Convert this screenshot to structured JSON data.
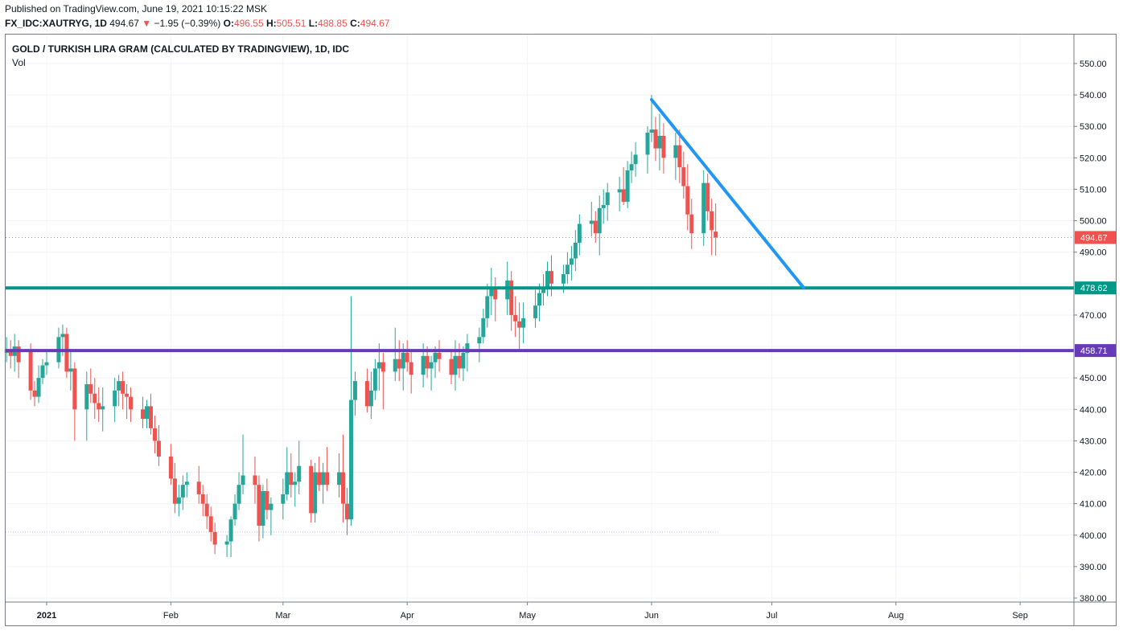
{
  "header": {
    "published": "Published on TradingView.com, June 19, 2021 10:15:22 MSK",
    "symbol": "FX_IDC:XAUTRYG, 1D",
    "last": "494.67",
    "arrow": "▼",
    "change": "−1.95 (−0.39%)",
    "o_label": "O:",
    "o": "496.55",
    "h_label": "H:",
    "h": "505.51",
    "l_label": "L:",
    "l": "488.85",
    "c_label": "C:",
    "c": "494.67"
  },
  "colors": {
    "up": "#26a69a",
    "down": "#ef5350",
    "trend": "#2196f3",
    "level1": "#009688",
    "level2": "#673ab7"
  },
  "chart_data": {
    "type": "candlestick",
    "title": "GOLD / TURKISH LIRA GRAM (CALCULATED BY TRADINGVIEW), 1D, IDC",
    "indicator": "Vol",
    "y_range": [
      376,
      556
    ],
    "y_ticks": [
      "550.00",
      "540.00",
      "530.00",
      "520.00",
      "510.00",
      "500.00",
      "490.00",
      "470.00",
      "450.00",
      "440.00",
      "430.00",
      "420.00",
      "410.00",
      "400.00",
      "390.00",
      "380.00"
    ],
    "x_labels": [
      {
        "date": "2021-01-01",
        "label": "2021",
        "bold": true
      },
      {
        "date": "2021-02-01",
        "label": "Feb"
      },
      {
        "date": "2021-03-01",
        "label": "Mar"
      },
      {
        "date": "2021-04-01",
        "label": "Apr"
      },
      {
        "date": "2021-05-01",
        "label": "May"
      },
      {
        "date": "2021-06-01",
        "label": "Jun"
      },
      {
        "date": "2021-07-01",
        "label": "Jul"
      },
      {
        "date": "2021-08-01",
        "label": "Aug"
      },
      {
        "date": "2021-09-01",
        "label": "Sep"
      }
    ],
    "levels": [
      {
        "name": "level-478",
        "value": 478.62,
        "label": "478.62",
        "color": "#009688"
      },
      {
        "name": "level-458",
        "value": 458.71,
        "label": "458.71",
        "color": "#673ab7"
      }
    ],
    "last_price": {
      "value": 494.67,
      "label": "494.67",
      "color": "#ef5350"
    },
    "trendline": {
      "from": {
        "date": "2021-06-01",
        "value": 538.5
      },
      "to": {
        "date": "2021-07-09",
        "value": 478.62
      },
      "color": "#2196f3"
    },
    "dotted_level": {
      "value": 401,
      "from": "2020-12-21",
      "to": "2021-06-18"
    },
    "candles": [
      {
        "d": "2020-12-22",
        "o": 458,
        "h": 463,
        "l": 455,
        "c": 459
      },
      {
        "d": "2020-12-23",
        "o": 459,
        "h": 462,
        "l": 453,
        "c": 457
      },
      {
        "d": "2020-12-24",
        "o": 457,
        "h": 464,
        "l": 452,
        "c": 460
      },
      {
        "d": "2020-12-25",
        "o": 460,
        "h": 462,
        "l": 450,
        "c": 455
      },
      {
        "d": "2020-12-28",
        "o": 459,
        "h": 461,
        "l": 443,
        "c": 446
      },
      {
        "d": "2020-12-29",
        "o": 446,
        "h": 449,
        "l": 441,
        "c": 444
      },
      {
        "d": "2020-12-30",
        "o": 444,
        "h": 454,
        "l": 442,
        "c": 450
      },
      {
        "d": "2020-12-31",
        "o": 450,
        "h": 456,
        "l": 448,
        "c": 454
      },
      {
        "d": "2021-01-01",
        "o": 454,
        "h": 459,
        "l": 451,
        "c": 455
      },
      {
        "d": "2021-01-04",
        "o": 455,
        "h": 466,
        "l": 453,
        "c": 463
      },
      {
        "d": "2021-01-05",
        "o": 463,
        "h": 467,
        "l": 457,
        "c": 464
      },
      {
        "d": "2021-01-06",
        "o": 464,
        "h": 466,
        "l": 450,
        "c": 452
      },
      {
        "d": "2021-01-07",
        "o": 452,
        "h": 459,
        "l": 446,
        "c": 453
      },
      {
        "d": "2021-01-08",
        "o": 453,
        "h": 455,
        "l": 430,
        "c": 440
      },
      {
        "d": "2021-01-11",
        "o": 440,
        "h": 452,
        "l": 430,
        "c": 448
      },
      {
        "d": "2021-01-12",
        "o": 448,
        "h": 453,
        "l": 442,
        "c": 445
      },
      {
        "d": "2021-01-13",
        "o": 445,
        "h": 450,
        "l": 437,
        "c": 442
      },
      {
        "d": "2021-01-14",
        "o": 442,
        "h": 447,
        "l": 436,
        "c": 440
      },
      {
        "d": "2021-01-15",
        "o": 440,
        "h": 447,
        "l": 433,
        "c": 441
      },
      {
        "d": "2021-01-18",
        "o": 441,
        "h": 450,
        "l": 436,
        "c": 446
      },
      {
        "d": "2021-01-19",
        "o": 446,
        "h": 451,
        "l": 441,
        "c": 449
      },
      {
        "d": "2021-01-20",
        "o": 449,
        "h": 452,
        "l": 440,
        "c": 445
      },
      {
        "d": "2021-01-21",
        "o": 445,
        "h": 448,
        "l": 437,
        "c": 444
      },
      {
        "d": "2021-01-22",
        "o": 444,
        "h": 447,
        "l": 436,
        "c": 440
      },
      {
        "d": "2021-01-25",
        "o": 440,
        "h": 444,
        "l": 434,
        "c": 437
      },
      {
        "d": "2021-01-26",
        "o": 437,
        "h": 443,
        "l": 434,
        "c": 441
      },
      {
        "d": "2021-01-27",
        "o": 441,
        "h": 445,
        "l": 432,
        "c": 434
      },
      {
        "d": "2021-01-28",
        "o": 434,
        "h": 438,
        "l": 426,
        "c": 430
      },
      {
        "d": "2021-01-29",
        "o": 430,
        "h": 435,
        "l": 422,
        "c": 425
      },
      {
        "d": "2021-02-01",
        "o": 425,
        "h": 429,
        "l": 416,
        "c": 418
      },
      {
        "d": "2021-02-02",
        "o": 418,
        "h": 423,
        "l": 407,
        "c": 410
      },
      {
        "d": "2021-02-03",
        "o": 410,
        "h": 416,
        "l": 406,
        "c": 412
      },
      {
        "d": "2021-02-04",
        "o": 412,
        "h": 419,
        "l": 408,
        "c": 416
      },
      {
        "d": "2021-02-05",
        "o": 416,
        "h": 420,
        "l": 412,
        "c": 417
      },
      {
        "d": "2021-02-08",
        "o": 417,
        "h": 422,
        "l": 410,
        "c": 413
      },
      {
        "d": "2021-02-09",
        "o": 413,
        "h": 416,
        "l": 406,
        "c": 410
      },
      {
        "d": "2021-02-10",
        "o": 410,
        "h": 413,
        "l": 402,
        "c": 406
      },
      {
        "d": "2021-02-11",
        "o": 406,
        "h": 409,
        "l": 398,
        "c": 401
      },
      {
        "d": "2021-02-12",
        "o": 401,
        "h": 404,
        "l": 394,
        "c": 397
      },
      {
        "d": "2021-02-15",
        "o": 397,
        "h": 400,
        "l": 393,
        "c": 398
      },
      {
        "d": "2021-02-16",
        "o": 398,
        "h": 406,
        "l": 393,
        "c": 405
      },
      {
        "d": "2021-02-17",
        "o": 405,
        "h": 413,
        "l": 403,
        "c": 410
      },
      {
        "d": "2021-02-18",
        "o": 410,
        "h": 420,
        "l": 408,
        "c": 416
      },
      {
        "d": "2021-02-19",
        "o": 416,
        "h": 432,
        "l": 413,
        "c": 419
      },
      {
        "d": "2021-02-22",
        "o": 419,
        "h": 425,
        "l": 410,
        "c": 416
      },
      {
        "d": "2021-02-23",
        "o": 416,
        "h": 419,
        "l": 398,
        "c": 403
      },
      {
        "d": "2021-02-24",
        "o": 403,
        "h": 416,
        "l": 399,
        "c": 414
      },
      {
        "d": "2021-02-25",
        "o": 414,
        "h": 418,
        "l": 405,
        "c": 408
      },
      {
        "d": "2021-02-26",
        "o": 408,
        "h": 412,
        "l": 400,
        "c": 410
      },
      {
        "d": "2021-03-01",
        "o": 410,
        "h": 418,
        "l": 405,
        "c": 413
      },
      {
        "d": "2021-03-02",
        "o": 413,
        "h": 428,
        "l": 411,
        "c": 420
      },
      {
        "d": "2021-03-03",
        "o": 420,
        "h": 426,
        "l": 412,
        "c": 416
      },
      {
        "d": "2021-03-04",
        "o": 416,
        "h": 420,
        "l": 409,
        "c": 417
      },
      {
        "d": "2021-03-05",
        "o": 417,
        "h": 430,
        "l": 413,
        "c": 422
      },
      {
        "d": "2021-03-08",
        "o": 422,
        "h": 424,
        "l": 404,
        "c": 407
      },
      {
        "d": "2021-03-09",
        "o": 407,
        "h": 423,
        "l": 404,
        "c": 420
      },
      {
        "d": "2021-03-10",
        "o": 420,
        "h": 425,
        "l": 414,
        "c": 416
      },
      {
        "d": "2021-03-11",
        "o": 416,
        "h": 423,
        "l": 410,
        "c": 420
      },
      {
        "d": "2021-03-12",
        "o": 420,
        "h": 428,
        "l": 414,
        "c": 416
      },
      {
        "d": "2021-03-15",
        "o": 416,
        "h": 426,
        "l": 412,
        "c": 420
      },
      {
        "d": "2021-03-16",
        "o": 420,
        "h": 432,
        "l": 404,
        "c": 410
      },
      {
        "d": "2021-03-17",
        "o": 410,
        "h": 415,
        "l": 400,
        "c": 405
      },
      {
        "d": "2021-03-18",
        "o": 405,
        "h": 476,
        "l": 403,
        "c": 443
      },
      {
        "d": "2021-03-19",
        "o": 443,
        "h": 452,
        "l": 438,
        "c": 449
      },
      {
        "d": "2021-03-22",
        "o": 449,
        "h": 453,
        "l": 439,
        "c": 441
      },
      {
        "d": "2021-03-23",
        "o": 441,
        "h": 452,
        "l": 437,
        "c": 446
      },
      {
        "d": "2021-03-24",
        "o": 446,
        "h": 456,
        "l": 443,
        "c": 453
      },
      {
        "d": "2021-03-25",
        "o": 453,
        "h": 461,
        "l": 446,
        "c": 455
      },
      {
        "d": "2021-03-26",
        "o": 455,
        "h": 458,
        "l": 440,
        "c": 452
      },
      {
        "d": "2021-03-29",
        "o": 452,
        "h": 466,
        "l": 449,
        "c": 456
      },
      {
        "d": "2021-03-30",
        "o": 456,
        "h": 462,
        "l": 449,
        "c": 453
      },
      {
        "d": "2021-03-31",
        "o": 453,
        "h": 461,
        "l": 446,
        "c": 458
      },
      {
        "d": "2021-04-01",
        "o": 458,
        "h": 462,
        "l": 452,
        "c": 455
      },
      {
        "d": "2021-04-02",
        "o": 455,
        "h": 459,
        "l": 445,
        "c": 451
      },
      {
        "d": "2021-04-05",
        "o": 451,
        "h": 461,
        "l": 447,
        "c": 457
      },
      {
        "d": "2021-04-06",
        "o": 457,
        "h": 460,
        "l": 450,
        "c": 453
      },
      {
        "d": "2021-04-07",
        "o": 453,
        "h": 457,
        "l": 446,
        "c": 455
      },
      {
        "d": "2021-04-08",
        "o": 455,
        "h": 460,
        "l": 450,
        "c": 458
      },
      {
        "d": "2021-04-09",
        "o": 458,
        "h": 462,
        "l": 452,
        "c": 456
      },
      {
        "d": "2021-04-12",
        "o": 456,
        "h": 459,
        "l": 448,
        "c": 451
      },
      {
        "d": "2021-04-13",
        "o": 451,
        "h": 462,
        "l": 446,
        "c": 457
      },
      {
        "d": "2021-04-14",
        "o": 457,
        "h": 461,
        "l": 450,
        "c": 453
      },
      {
        "d": "2021-04-15",
        "o": 453,
        "h": 460,
        "l": 449,
        "c": 458
      },
      {
        "d": "2021-04-16",
        "o": 458,
        "h": 464,
        "l": 452,
        "c": 461
      },
      {
        "d": "2021-04-19",
        "o": 461,
        "h": 466,
        "l": 455,
        "c": 463
      },
      {
        "d": "2021-04-20",
        "o": 463,
        "h": 472,
        "l": 461,
        "c": 469
      },
      {
        "d": "2021-04-21",
        "o": 469,
        "h": 480,
        "l": 466,
        "c": 476
      },
      {
        "d": "2021-04-22",
        "o": 476,
        "h": 485,
        "l": 470,
        "c": 479
      },
      {
        "d": "2021-04-23",
        "o": 479,
        "h": 482,
        "l": 468,
        "c": 475
      },
      {
        "d": "2021-04-26",
        "o": 475,
        "h": 487,
        "l": 470,
        "c": 481
      },
      {
        "d": "2021-04-27",
        "o": 481,
        "h": 484,
        "l": 465,
        "c": 470
      },
      {
        "d": "2021-04-28",
        "o": 470,
        "h": 476,
        "l": 463,
        "c": 468
      },
      {
        "d": "2021-04-29",
        "o": 468,
        "h": 474,
        "l": 459,
        "c": 466
      },
      {
        "d": "2021-04-30",
        "o": 466,
        "h": 474,
        "l": 461,
        "c": 469
      },
      {
        "d": "2021-05-03",
        "o": 469,
        "h": 478,
        "l": 466,
        "c": 473
      },
      {
        "d": "2021-05-04",
        "o": 473,
        "h": 480,
        "l": 468,
        "c": 477
      },
      {
        "d": "2021-05-05",
        "o": 477,
        "h": 483,
        "l": 473,
        "c": 479
      },
      {
        "d": "2021-05-06",
        "o": 479,
        "h": 487,
        "l": 476,
        "c": 484
      },
      {
        "d": "2021-05-07",
        "o": 484,
        "h": 489,
        "l": 476,
        "c": 480
      },
      {
        "d": "2021-05-10",
        "o": 480,
        "h": 486,
        "l": 477,
        "c": 483
      },
      {
        "d": "2021-05-11",
        "o": 483,
        "h": 490,
        "l": 480,
        "c": 486
      },
      {
        "d": "2021-05-12",
        "o": 486,
        "h": 492,
        "l": 481,
        "c": 488
      },
      {
        "d": "2021-05-13",
        "o": 488,
        "h": 497,
        "l": 484,
        "c": 493
      },
      {
        "d": "2021-05-14",
        "o": 493,
        "h": 502,
        "l": 489,
        "c": 499
      },
      {
        "d": "2021-05-17",
        "o": 499,
        "h": 506,
        "l": 495,
        "c": 500
      },
      {
        "d": "2021-05-18",
        "o": 500,
        "h": 503,
        "l": 493,
        "c": 496
      },
      {
        "d": "2021-05-19",
        "o": 496,
        "h": 508,
        "l": 489,
        "c": 504
      },
      {
        "d": "2021-05-20",
        "o": 504,
        "h": 510,
        "l": 499,
        "c": 505
      },
      {
        "d": "2021-05-21",
        "o": 505,
        "h": 512,
        "l": 500,
        "c": 509
      },
      {
        "d": "2021-05-24",
        "o": 509,
        "h": 514,
        "l": 503,
        "c": 510
      },
      {
        "d": "2021-05-25",
        "o": 510,
        "h": 517,
        "l": 505,
        "c": 506
      },
      {
        "d": "2021-05-26",
        "o": 506,
        "h": 519,
        "l": 504,
        "c": 516
      },
      {
        "d": "2021-05-27",
        "o": 516,
        "h": 522,
        "l": 512,
        "c": 518
      },
      {
        "d": "2021-05-28",
        "o": 518,
        "h": 525,
        "l": 514,
        "c": 521
      },
      {
        "d": "2021-05-31",
        "o": 521,
        "h": 530,
        "l": 515,
        "c": 528
      },
      {
        "d": "2021-06-01",
        "o": 528,
        "h": 540,
        "l": 525,
        "c": 529
      },
      {
        "d": "2021-06-02",
        "o": 529,
        "h": 533,
        "l": 519,
        "c": 523
      },
      {
        "d": "2021-06-03",
        "o": 523,
        "h": 534,
        "l": 516,
        "c": 527
      },
      {
        "d": "2021-06-04",
        "o": 527,
        "h": 531,
        "l": 515,
        "c": 520
      },
      {
        "d": "2021-06-07",
        "o": 520,
        "h": 528,
        "l": 513,
        "c": 524
      },
      {
        "d": "2021-06-08",
        "o": 524,
        "h": 529,
        "l": 512,
        "c": 517
      },
      {
        "d": "2021-06-09",
        "o": 517,
        "h": 522,
        "l": 507,
        "c": 511
      },
      {
        "d": "2021-06-10",
        "o": 511,
        "h": 518,
        "l": 497,
        "c": 502
      },
      {
        "d": "2021-06-11",
        "o": 502,
        "h": 507,
        "l": 491,
        "c": 496
      },
      {
        "d": "2021-06-14",
        "o": 496,
        "h": 516,
        "l": 492,
        "c": 512
      },
      {
        "d": "2021-06-15",
        "o": 512,
        "h": 515,
        "l": 500,
        "c": 503
      },
      {
        "d": "2021-06-16",
        "o": 503,
        "h": 507,
        "l": 489,
        "c": 497
      },
      {
        "d": "2021-06-17",
        "o": 496.55,
        "h": 505.51,
        "l": 488.85,
        "c": 494.67
      }
    ]
  }
}
